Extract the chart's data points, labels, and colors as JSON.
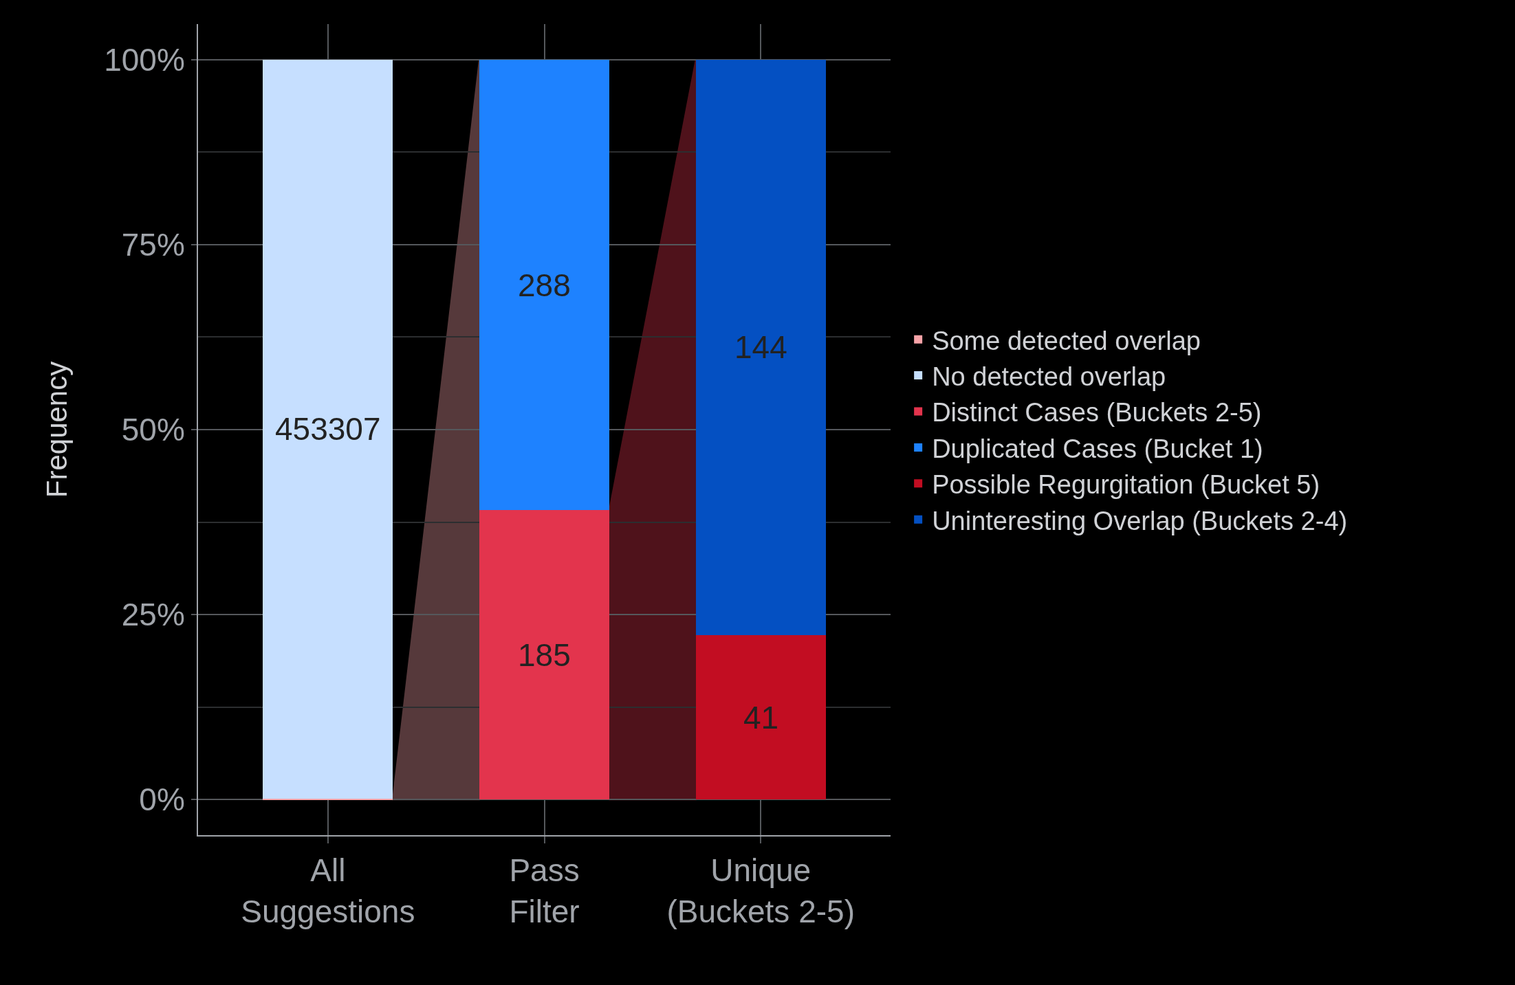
{
  "chart_data": {
    "type": "bar",
    "stacked": true,
    "ylabel": "Frequency",
    "categories": [
      "All\nSuggestions",
      "Pass\nFilter",
      "Unique\n(Buckets 2-5)"
    ],
    "series": [
      {
        "name": "Some detected overlap",
        "color": "#f7a3a8",
        "values": [
          0.1,
          0,
          0
        ]
      },
      {
        "name": "No detected overlap",
        "color": "#c6dfff",
        "values": [
          99.9,
          0,
          0
        ]
      },
      {
        "name": "Distinct Cases (Buckets 2-5)",
        "color": "#e3344d",
        "values": [
          0,
          39.1,
          0
        ]
      },
      {
        "name": "Duplicated Cases (Bucket 1)",
        "color": "#1e82ff",
        "values": [
          0,
          60.9,
          0
        ]
      },
      {
        "name": "Possible Regurgitation (Bucket 5)",
        "color": "#c20d22",
        "values": [
          0,
          0,
          22.2
        ]
      },
      {
        "name": "Uninteresting Overlap (Buckets 2-4)",
        "color": "#0450c2",
        "values": [
          0,
          0,
          77.8
        ]
      }
    ],
    "annotations": [
      "453307",
      "185",
      "288",
      "41",
      "144"
    ],
    "ylim": [
      -4.8,
      104.8
    ],
    "yticks": [
      {
        "value": 0,
        "label": "0%"
      },
      {
        "value": 12.5,
        "label": null
      },
      {
        "value": 25,
        "label": "25%"
      },
      {
        "value": 37.5,
        "label": null
      },
      {
        "value": 50,
        "label": "50%"
      },
      {
        "value": 62.5,
        "label": null
      },
      {
        "value": 75,
        "label": "75%"
      },
      {
        "value": 87.5,
        "label": null
      },
      {
        "value": 100,
        "label": "100%"
      }
    ],
    "grid": true,
    "legend": "right"
  }
}
